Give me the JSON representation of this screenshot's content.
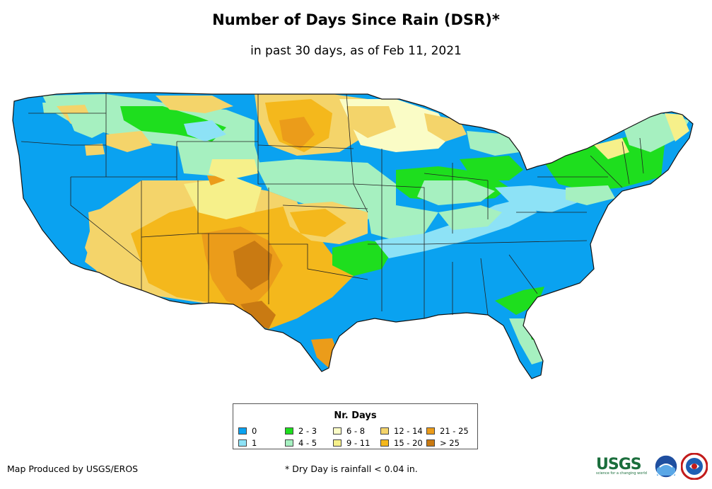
{
  "title": "Number of Days Since Rain (DSR)*",
  "subtitle": "in past 30 days, as of Feb 11, 2021",
  "legend": {
    "title": "Nr. Days",
    "items": [
      {
        "label": "0",
        "color": "#0aa2f0"
      },
      {
        "label": "1",
        "color": "#8de2f6"
      },
      {
        "label": "2 - 3",
        "color": "#1ede1e"
      },
      {
        "label": "4 - 5",
        "color": "#a6f0c0"
      },
      {
        "label": "6 - 8",
        "color": "#fafcc6"
      },
      {
        "label": "9 - 11",
        "color": "#f6f08a"
      },
      {
        "label": "12 - 14",
        "color": "#f4d46a"
      },
      {
        "label": "15 - 20",
        "color": "#f4b81c"
      },
      {
        "label": "21 - 25",
        "color": "#eb9c1a"
      },
      {
        "label": "> 25",
        "color": "#c97a12"
      }
    ]
  },
  "footer": {
    "credit": "Map Produced by USGS/EROS",
    "note": "* Dry Day is rainfall < 0.04 in."
  },
  "logos": {
    "usgs": "USGS",
    "usgs_tagline": "science for a changing world",
    "noaa": "NOAA",
    "nws": "NWS"
  }
}
